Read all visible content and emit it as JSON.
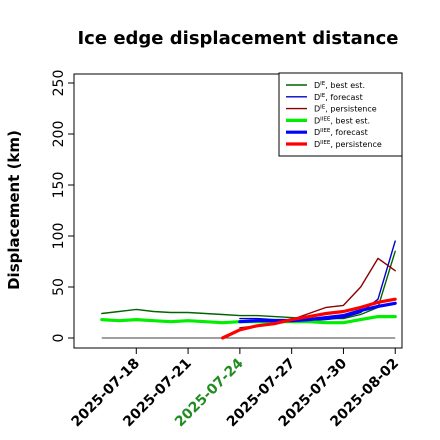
{
  "chart_data": {
    "type": "line",
    "title": "Ice edge displacement distance",
    "ylabel": "Displacement (km)",
    "xlabel": "",
    "ylim": [
      0,
      260
    ],
    "yticks": [
      0,
      50,
      100,
      150,
      200,
      250
    ],
    "xlim": [
      "2025-07-15",
      "2025-08-03"
    ],
    "xticks": [
      {
        "date": "2025-07-18",
        "label": "2025-07-18",
        "color": "#000000"
      },
      {
        "date": "2025-07-21",
        "label": "2025-07-21",
        "color": "#000000"
      },
      {
        "date": "2025-07-24",
        "label": "2025-07-24",
        "color": "#228B22"
      },
      {
        "date": "2025-07-27",
        "label": "2025-07-27",
        "color": "#000000"
      },
      {
        "date": "2025-07-30",
        "label": "2025-07-30",
        "color": "#000000"
      },
      {
        "date": "2025-08-02",
        "label": "2025-08-02",
        "color": "#000000"
      }
    ],
    "grid": false,
    "legend_position": "top-right",
    "baseline": {
      "y": 0,
      "from": "2025-07-16",
      "to": "2025-08-02",
      "color": "#000000"
    },
    "series": [
      {
        "name": "Dᴵᴱ, best est.",
        "sup": "IE",
        "base": "D",
        "suffix": ", best est.",
        "color": "#006400",
        "width": 1.4,
        "points": [
          [
            "2025-07-16",
            24
          ],
          [
            "2025-07-17",
            26
          ],
          [
            "2025-07-18",
            28
          ],
          [
            "2025-07-19",
            26
          ],
          [
            "2025-07-20",
            25
          ],
          [
            "2025-07-21",
            25
          ],
          [
            "2025-07-22",
            24
          ],
          [
            "2025-07-23",
            23
          ],
          [
            "2025-07-24",
            22
          ],
          [
            "2025-07-25",
            22
          ],
          [
            "2025-07-26",
            21
          ],
          [
            "2025-07-27",
            20
          ],
          [
            "2025-07-28",
            19
          ],
          [
            "2025-07-29",
            19
          ],
          [
            "2025-07-30",
            19
          ],
          [
            "2025-07-31",
            23
          ],
          [
            "2025-08-01",
            30
          ],
          [
            "2025-08-02",
            85
          ]
        ]
      },
      {
        "name": "Dᴵᴱ, forecast",
        "sup": "IE",
        "base": "D",
        "suffix": ", forecast",
        "color": "#0000CD",
        "width": 1.4,
        "points": [
          [
            "2025-07-24",
            19
          ],
          [
            "2025-07-25",
            19
          ],
          [
            "2025-07-26",
            18
          ],
          [
            "2025-07-27",
            18
          ],
          [
            "2025-07-28",
            17
          ],
          [
            "2025-07-29",
            18
          ],
          [
            "2025-07-30",
            20
          ],
          [
            "2025-07-31",
            25
          ],
          [
            "2025-08-01",
            38
          ],
          [
            "2025-08-02",
            95
          ]
        ]
      },
      {
        "name": "Dᴵᴱ, persistence",
        "sup": "IE",
        "base": "D",
        "suffix": ", persistence",
        "color": "#8B0000",
        "width": 1.4,
        "points": [
          [
            "2025-07-24",
            10
          ],
          [
            "2025-07-25",
            12
          ],
          [
            "2025-07-26",
            15
          ],
          [
            "2025-07-27",
            18
          ],
          [
            "2025-07-28",
            24
          ],
          [
            "2025-07-29",
            30
          ],
          [
            "2025-07-30",
            32
          ],
          [
            "2025-07-31",
            50
          ],
          [
            "2025-08-01",
            78
          ],
          [
            "2025-08-02",
            66
          ]
        ]
      },
      {
        "name": "Dᴵᴵᴱᴱ, best est.",
        "sup": "IIEE",
        "base": "D",
        "suffix": ", best est.",
        "color": "#00EE00",
        "width": 3.2,
        "points": [
          [
            "2025-07-16",
            18
          ],
          [
            "2025-07-17",
            17
          ],
          [
            "2025-07-18",
            18
          ],
          [
            "2025-07-19",
            17
          ],
          [
            "2025-07-20",
            16
          ],
          [
            "2025-07-21",
            17
          ],
          [
            "2025-07-22",
            16
          ],
          [
            "2025-07-23",
            15
          ],
          [
            "2025-07-24",
            16
          ],
          [
            "2025-07-25",
            16
          ],
          [
            "2025-07-26",
            16
          ],
          [
            "2025-07-27",
            16
          ],
          [
            "2025-07-28",
            16
          ],
          [
            "2025-07-29",
            15
          ],
          [
            "2025-07-30",
            15
          ],
          [
            "2025-07-31",
            18
          ],
          [
            "2025-08-01",
            21
          ],
          [
            "2025-08-02",
            21
          ]
        ]
      },
      {
        "name": "Dᴵᴵᴱᴱ, forecast",
        "sup": "IIEE",
        "base": "D",
        "suffix": ", forecast",
        "color": "#0000FF",
        "width": 3.2,
        "points": [
          [
            "2025-07-24",
            16
          ],
          [
            "2025-07-25",
            17
          ],
          [
            "2025-07-26",
            17
          ],
          [
            "2025-07-27",
            17
          ],
          [
            "2025-07-28",
            18
          ],
          [
            "2025-07-29",
            20
          ],
          [
            "2025-07-30",
            22
          ],
          [
            "2025-07-31",
            27
          ],
          [
            "2025-08-01",
            31
          ],
          [
            "2025-08-02",
            34
          ]
        ]
      },
      {
        "name": "Dᴵᴵᴱᴱ, persistence",
        "sup": "IIEE",
        "base": "D",
        "suffix": ", persistence",
        "color": "#FF0000",
        "width": 3.2,
        "points": [
          [
            "2025-07-23",
            0
          ],
          [
            "2025-07-24",
            8
          ],
          [
            "2025-07-25",
            12
          ],
          [
            "2025-07-26",
            14
          ],
          [
            "2025-07-27",
            18
          ],
          [
            "2025-07-28",
            21
          ],
          [
            "2025-07-29",
            24
          ],
          [
            "2025-07-30",
            26
          ],
          [
            "2025-07-31",
            30
          ],
          [
            "2025-08-01",
            35
          ],
          [
            "2025-08-02",
            38
          ]
        ]
      }
    ]
  }
}
